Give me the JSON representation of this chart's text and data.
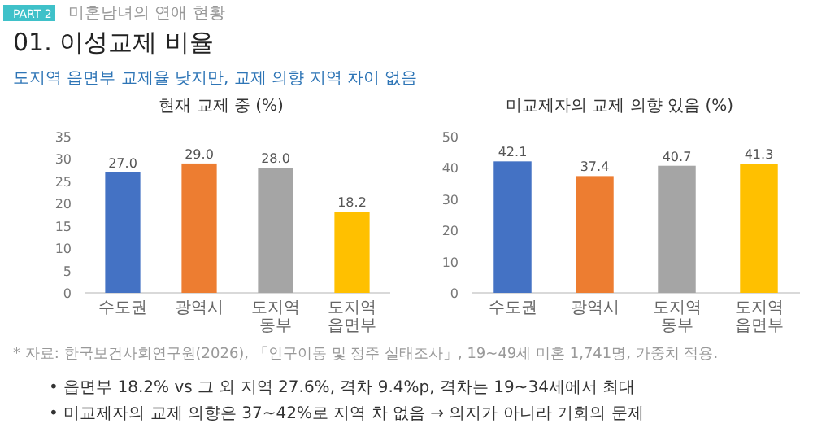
{
  "chart_data": [
    {
      "type": "bar",
      "title": "현재 교제 중 (%)",
      "categories": [
        "수도권",
        "광역시",
        "도지역 동부",
        "도지역 읍면부"
      ],
      "values": [
        27.0,
        29.0,
        28.0,
        18.2
      ],
      "colors": [
        "#4472c4",
        "#ed7d31",
        "#a5a5a5",
        "#ffc000"
      ],
      "ylim": [
        0,
        35
      ],
      "yticks": [
        0,
        5,
        10,
        15,
        20,
        25,
        30,
        35
      ],
      "value_labels": [
        "27.0",
        "29.0",
        "28.0",
        "18.2"
      ],
      "annotations": [
        "PART 2",
        "미혼남녀의 연애 현황",
        "01. 이성교제 비율",
        "도지역 읍면부 교제율 낮지만, 교제 의향 지역 차이 없음",
        "* 자료: 한국보건사회연구원(2026), 「인구이동 및 정주 실태조사」, 19~49세 미혼 1,741명, 가중치 적용."
      ]
    },
    {
      "type": "bar",
      "title": "미교제자의 교제 의향 있음 (%)",
      "categories": [
        "수도권",
        "광역시",
        "도지역 동부",
        "도지역 읍면부"
      ],
      "values": [
        42.1,
        37.4,
        40.7,
        41.3
      ],
      "colors": [
        "#4472c4",
        "#ed7d31",
        "#a5a5a5",
        "#ffc000"
      ],
      "ylim": [
        0,
        50
      ],
      "yticks": [
        0,
        10,
        20,
        30,
        40,
        50
      ],
      "data_labels": true,
      "annotations": [
        "• 읍면부 18.2% vs 그 외 지역 27.6%, 격차 9.4%p, 격차는 19~34세에서 최대",
        "• 미교제자의 교제 의향은 37~42%로 지역 차 없음 → 의지가 아니라 기회의 문제"
      ]
    }
  ]
}
